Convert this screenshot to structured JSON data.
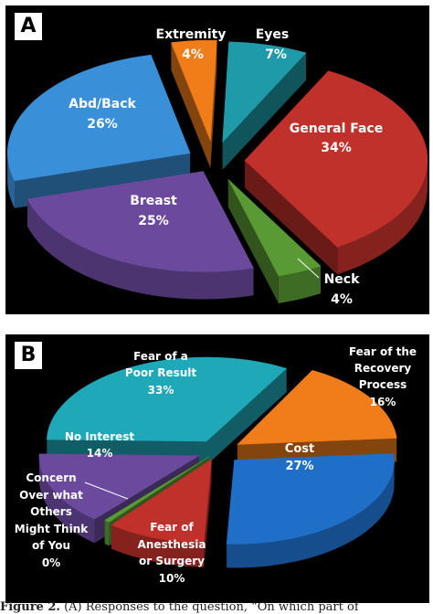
{
  "chart_data": [
    {
      "type": "pie",
      "panel": "A",
      "slices": [
        {
          "label": "Eyes",
          "value": 7,
          "value_label": "7%",
          "color": "#1f9aa8"
        },
        {
          "label": "General Face",
          "value": 34,
          "value_label": "34%",
          "color": "#c0312b"
        },
        {
          "label": "Neck",
          "value": 4,
          "value_label": "4%",
          "color": "#5a9a35"
        },
        {
          "label": "Breast",
          "value": 25,
          "value_label": "25%",
          "color": "#6b4a9e"
        },
        {
          "label": "Abd/Back",
          "value": 26,
          "value_label": "26%",
          "color": "#3a8fd9"
        },
        {
          "label": "Extremity",
          "value": 4,
          "value_label": "4%",
          "color": "#f07c1a"
        }
      ]
    },
    {
      "type": "pie",
      "panel": "B",
      "slices": [
        {
          "label": "Fear of the Recovery Process",
          "value": 16,
          "value_label": "16%",
          "color": "#f07c1a"
        },
        {
          "label": "Cost",
          "value": 27,
          "value_label": "27%",
          "color": "#1f6fc9"
        },
        {
          "label": "Fear of Anesthesia or Surgery",
          "value": 10,
          "value_label": "10%",
          "color": "#c0312b"
        },
        {
          "label": "Concern Over what Others Might Think of You",
          "value": 0,
          "value_label": "0%",
          "color": "#5a9a35"
        },
        {
          "label": "No Interest",
          "value": 14,
          "value_label": "14%",
          "color": "#6b4a9e"
        },
        {
          "label": "Fear of a Poor Result",
          "value": 33,
          "value_label": "33%",
          "color": "#1fa8b8"
        }
      ]
    }
  ],
  "panels": {
    "a_label": "A",
    "b_label": "B"
  },
  "caption": {
    "prefix": "Figure 2.",
    "text": "(A) Responses to the question, “On which part of"
  }
}
